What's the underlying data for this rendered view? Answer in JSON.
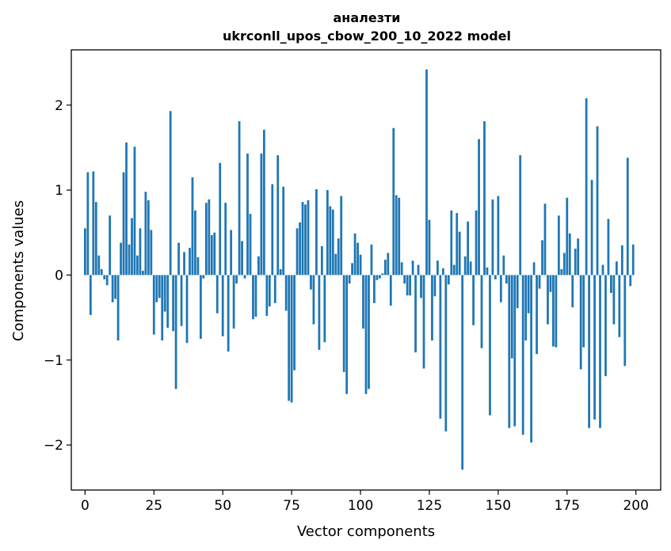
{
  "chart_data": {
    "type": "bar",
    "title_line1": "аналезти",
    "title_line2": "ukrconll_upos_cbow_200_10_2022 model",
    "xlabel": "Vector components",
    "ylabel": "Components values",
    "xlim": [
      -5,
      209
    ],
    "ylim": [
      -2.53,
      2.65
    ],
    "x_ticks": [
      0,
      25,
      50,
      75,
      100,
      125,
      150,
      175,
      200
    ],
    "y_ticks": [
      2,
      1,
      0,
      -1,
      -2
    ],
    "y_tick_labels": [
      "2",
      "1",
      "0",
      "−1",
      "−2"
    ],
    "bar_color": "#1f77b4",
    "grid": false,
    "values": [
      0.55,
      1.21,
      -0.47,
      1.22,
      0.86,
      0.23,
      0.07,
      -0.05,
      -0.12,
      0.7,
      -0.32,
      -0.28,
      -0.77,
      0.38,
      1.21,
      1.56,
      0.36,
      0.67,
      1.51,
      0.23,
      0.55,
      0.05,
      0.98,
      0.88,
      0.53,
      -0.7,
      -0.32,
      -0.27,
      -0.77,
      -0.43,
      -0.62,
      1.93,
      -0.66,
      -1.34,
      0.38,
      -0.6,
      0.27,
      -0.8,
      0.32,
      1.15,
      0.76,
      0.21,
      -0.75,
      -0.04,
      0.85,
      0.89,
      0.47,
      0.5,
      -0.45,
      1.32,
      -0.72,
      0.85,
      -0.9,
      0.53,
      -0.63,
      -0.1,
      1.81,
      0.4,
      -0.04,
      1.43,
      0.72,
      -0.52,
      -0.49,
      0.22,
      1.43,
      1.71,
      -0.48,
      -0.37,
      1.07,
      -0.33,
      1.41,
      0.07,
      1.04,
      -0.42,
      -1.48,
      -1.5,
      -1.12,
      0.55,
      0.62,
      0.86,
      0.83,
      0.88,
      -0.17,
      -0.58,
      1.01,
      -0.88,
      0.34,
      -0.79,
      1.0,
      0.81,
      0.77,
      0.25,
      0.43,
      0.93,
      -1.14,
      -1.4,
      -0.1,
      0.14,
      0.49,
      0.38,
      0.24,
      -0.63,
      -1.4,
      -1.34,
      0.36,
      -0.33,
      -0.06,
      -0.04,
      0.02,
      0.18,
      0.26,
      -0.36,
      1.73,
      0.94,
      0.91,
      0.15,
      -0.1,
      -0.24,
      -0.24,
      0.17,
      -0.91,
      0.12,
      -0.27,
      -1.1,
      2.42,
      0.65,
      -0.77,
      -0.25,
      0.17,
      -1.69,
      0.08,
      -1.84,
      -0.11,
      0.76,
      0.12,
      0.73,
      0.51,
      -2.29,
      0.22,
      0.63,
      0.16,
      -0.59,
      0.76,
      1.6,
      -0.86,
      1.81,
      0.09,
      -1.65,
      0.89,
      -0.05,
      0.93,
      -0.32,
      0.23,
      -0.1,
      -1.8,
      -0.98,
      -1.78,
      -0.39,
      1.41,
      -1.88,
      -0.77,
      -0.45,
      -1.97,
      0.15,
      -0.93,
      -0.16,
      0.41,
      0.84,
      -0.58,
      -0.2,
      -0.84,
      -0.85,
      0.7,
      0.07,
      0.26,
      0.91,
      0.49,
      -0.38,
      0.31,
      0.43,
      -1.11,
      -0.85,
      2.08,
      -1.8,
      1.12,
      -1.7,
      1.75,
      -1.8,
      0.12,
      -1.19,
      0.66,
      -0.21,
      -0.58,
      0.16,
      -0.73,
      0.35,
      -1.07,
      1.38,
      -0.13,
      0.36
    ]
  }
}
